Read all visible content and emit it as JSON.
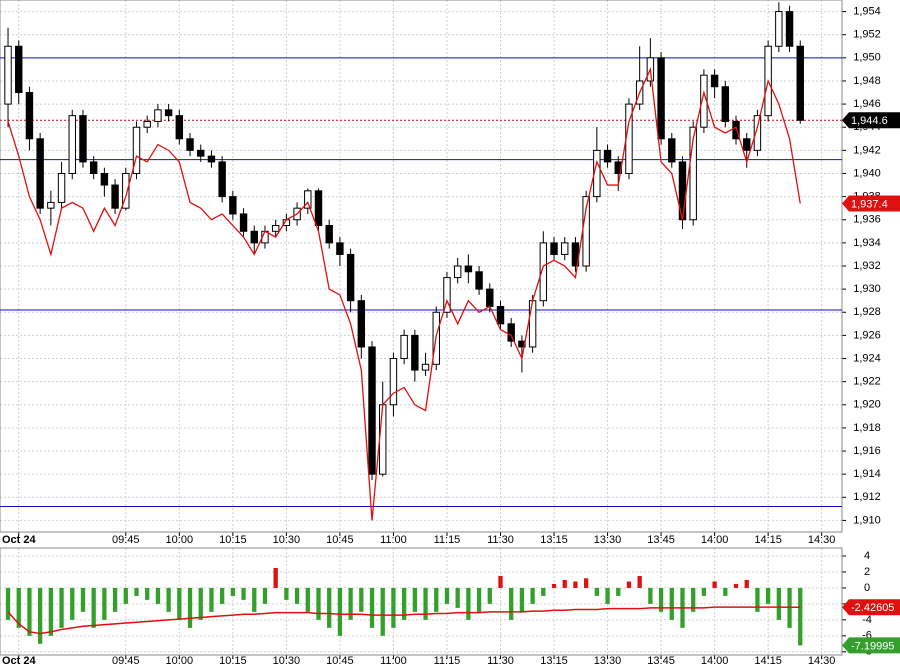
{
  "chart_data": [
    {
      "type": "candlestick",
      "xlim": [
        -0.75,
        77.9
      ],
      "xticks": [
        {
          "value": 1,
          "label": "Oct 24"
        },
        {
          "value": 11,
          "label": "09:45"
        },
        {
          "value": 16,
          "label": "10:00"
        },
        {
          "value": 21,
          "label": "10:15"
        },
        {
          "value": 26,
          "label": "10:30"
        },
        {
          "value": 31,
          "label": "10:45"
        },
        {
          "value": 36,
          "label": "11:00"
        },
        {
          "value": 41,
          "label": "11:15"
        },
        {
          "value": 46,
          "label": "11:30"
        },
        {
          "value": 51,
          "label": "13:15"
        },
        {
          "value": 56,
          "label": "13:30"
        },
        {
          "value": 61,
          "label": "13:45"
        },
        {
          "value": 66,
          "label": "14:00"
        },
        {
          "value": 71,
          "label": "14:15"
        },
        {
          "value": 76,
          "label": "14:30"
        }
      ],
      "ylim": [
        1909,
        1955
      ],
      "yticks": [
        {
          "value": 1910,
          "label": "1,910"
        },
        {
          "value": 1912,
          "label": "1,912"
        },
        {
          "value": 1914,
          "label": "1,914"
        },
        {
          "value": 1916,
          "label": "1,916"
        },
        {
          "value": 1918,
          "label": "1,918"
        },
        {
          "value": 1920,
          "label": "1,920"
        },
        {
          "value": 1922,
          "label": "1,922"
        },
        {
          "value": 1924,
          "label": "1,924"
        },
        {
          "value": 1926,
          "label": "1,926"
        },
        {
          "value": 1928,
          "label": "1,928"
        },
        {
          "value": 1930,
          "label": "1,930"
        },
        {
          "value": 1932,
          "label": "1,932"
        },
        {
          "value": 1934,
          "label": "1,934"
        },
        {
          "value": 1936,
          "label": "1,936"
        },
        {
          "value": 1938,
          "label": "1,938"
        },
        {
          "value": 1940,
          "label": "1,940"
        },
        {
          "value": 1942,
          "label": "1,942"
        },
        {
          "value": 1944,
          "label": "1,944"
        },
        {
          "value": 1946,
          "label": "1,946"
        },
        {
          "value": 1948,
          "label": "1,948"
        },
        {
          "value": 1950,
          "label": "1,950"
        },
        {
          "value": 1952,
          "label": "1,952"
        },
        {
          "value": 1954,
          "label": "1,954"
        }
      ],
      "grid": true,
      "open": [
        1946,
        1951,
        1947,
        1943,
        1937,
        1937.5,
        1940,
        1945,
        1941,
        1940,
        1939,
        1937,
        1940,
        1944,
        1944.5,
        1945.5,
        1945,
        1943,
        1942,
        1941.5,
        1941,
        1938,
        1936.5,
        1935,
        1934,
        1935,
        1935.5,
        1936,
        1937,
        1938.5,
        1935.5,
        1934,
        1933,
        1929,
        1925,
        1914,
        1920,
        1924,
        1926,
        1923,
        1923.5,
        1928,
        1931,
        1932,
        1931.5,
        1930,
        1928.5,
        1927,
        1925.5,
        1925,
        1929,
        1934,
        1933,
        1934,
        1932,
        1938,
        1942,
        1941,
        1940,
        1946,
        1948,
        1950,
        1943,
        1941,
        1936,
        1944,
        1948.5,
        1947.5,
        1944.5,
        1943,
        1942,
        1945,
        1951,
        1954,
        1951
      ],
      "high": [
        1952.6,
        1951.5,
        1947.5,
        1943.5,
        1938.5,
        1941,
        1945.5,
        1945.5,
        1941.5,
        1940.5,
        1939.5,
        1940.5,
        1944.5,
        1945,
        1946,
        1946,
        1945.5,
        1943.5,
        1942.5,
        1942,
        1941.5,
        1938.5,
        1937,
        1935.5,
        1935.5,
        1936,
        1936.5,
        1937.5,
        1938.7,
        1938.7,
        1936,
        1934.5,
        1933.5,
        1929.5,
        1925.5,
        1922,
        1924.5,
        1926.5,
        1926.5,
        1924.5,
        1928.5,
        1931.5,
        1932.7,
        1933,
        1932,
        1930.5,
        1929,
        1927.5,
        1926,
        1929.5,
        1935,
        1934.5,
        1934.5,
        1934.5,
        1938.5,
        1944,
        1942.5,
        1941.5,
        1946.5,
        1951,
        1951.7,
        1950.5,
        1943.5,
        1941.5,
        1944.5,
        1949,
        1949,
        1948,
        1945,
        1943.5,
        1945.5,
        1951.5,
        1954.8,
        1954.5,
        1951.5
      ],
      "low": [
        1944,
        1946,
        1942,
        1936.5,
        1935.5,
        1937,
        1939.5,
        1940.5,
        1939.5,
        1938,
        1936.5,
        1936.8,
        1939.5,
        1943.5,
        1944,
        1944.5,
        1942.5,
        1941.5,
        1941,
        1940.5,
        1937.5,
        1936,
        1934.5,
        1933,
        1933.5,
        1934.5,
        1935,
        1935.5,
        1936.5,
        1935,
        1933.5,
        1932,
        1928,
        1924,
        1913.5,
        1913.8,
        1919,
        1923.5,
        1922,
        1922.5,
        1923,
        1927.5,
        1930.5,
        1930.5,
        1929.5,
        1928,
        1926.5,
        1925,
        1922.8,
        1924.5,
        1928.5,
        1932.5,
        1932.5,
        1931.5,
        1931.5,
        1937.5,
        1940.5,
        1938.5,
        1939.5,
        1945.5,
        1947.5,
        1942.5,
        1940.5,
        1935.2,
        1935.5,
        1943.5,
        1946.5,
        1944,
        1942.5,
        1940.5,
        1941.5,
        1944.5,
        1950.5,
        1950.5,
        1944.3
      ],
      "close": [
        1951,
        1947,
        1943,
        1937,
        1937.5,
        1940,
        1945,
        1941,
        1940,
        1939,
        1937,
        1940,
        1944,
        1944.5,
        1945.5,
        1945,
        1943,
        1942,
        1941.5,
        1941,
        1938,
        1936.5,
        1935,
        1934,
        1935,
        1935.5,
        1936,
        1937,
        1938.5,
        1935.5,
        1934,
        1933,
        1929,
        1925,
        1914,
        1920,
        1924,
        1926,
        1923,
        1923.5,
        1928,
        1931,
        1932,
        1931.5,
        1930,
        1928.5,
        1927,
        1925.5,
        1925,
        1929,
        1934,
        1933,
        1934,
        1932,
        1938,
        1942,
        1941,
        1940,
        1946,
        1948,
        1950,
        1943,
        1941,
        1936,
        1944,
        1948.5,
        1947.5,
        1944.5,
        1943,
        1942,
        1945,
        1951,
        1954,
        1951,
        1944.6
      ],
      "up_color": "#ffffff",
      "down_color": "#000000",
      "overlay": {
        "color": "#e01010",
        "values": [
          1944.5,
          1941.5,
          1938,
          1936,
          1933,
          1937,
          1937.5,
          1937,
          1935,
          1937,
          1935.5,
          1938,
          1941.5,
          1941,
          1942.5,
          1942,
          1941,
          1937.5,
          1937,
          1936,
          1936.5,
          1935.5,
          1934.5,
          1933,
          1935,
          1934.5,
          1936,
          1936.5,
          1937.5,
          1935,
          1930,
          1929.5,
          1927,
          1923,
          1910,
          1920,
          1921,
          1921.5,
          1920,
          1919.5,
          1926,
          1929,
          1927,
          1929,
          1928,
          1928.5,
          1926.5,
          1926,
          1924,
          1929,
          1932,
          1932.5,
          1932,
          1931,
          1937,
          1941,
          1939,
          1939,
          1944.5,
          1947,
          1949,
          1941,
          1940,
          1936,
          1943,
          1947,
          1944,
          1943.5,
          1944,
          1941,
          1944,
          1948,
          1946,
          1943,
          1937.4
        ]
      },
      "hlines": [
        {
          "value": 1950,
          "color": "#1010c0"
        },
        {
          "value": 1941.2,
          "color": "#1010c0"
        },
        {
          "value": 1928.2,
          "color": "#1010c0"
        },
        {
          "value": 1911.2,
          "color": "#1010c0"
        }
      ],
      "annotations": [
        {
          "value": 1944.6,
          "label": "1,944.6",
          "color": "#000000",
          "dashed": true
        },
        {
          "value": 1937.4,
          "label": "1,937.4",
          "color": "#e01010",
          "dashed": false
        }
      ]
    },
    {
      "type": "bar",
      "xlim": [
        -0.75,
        77.9
      ],
      "xticks": [
        {
          "value": 1,
          "label": "Oct 24"
        },
        {
          "value": 11,
          "label": "09:45"
        },
        {
          "value": 16,
          "label": "10:00"
        },
        {
          "value": 21,
          "label": "10:15"
        },
        {
          "value": 26,
          "label": "10:30"
        },
        {
          "value": 31,
          "label": "10:45"
        },
        {
          "value": 36,
          "label": "11:00"
        },
        {
          "value": 41,
          "label": "11:15"
        },
        {
          "value": 46,
          "label": "11:30"
        },
        {
          "value": 51,
          "label": "13:15"
        },
        {
          "value": 56,
          "label": "13:30"
        },
        {
          "value": 61,
          "label": "13:45"
        },
        {
          "value": 66,
          "label": "14:00"
        },
        {
          "value": 71,
          "label": "14:15"
        },
        {
          "value": 76,
          "label": "14:30"
        }
      ],
      "ylim": [
        -8.4,
        5
      ],
      "yticks": [
        4,
        2,
        0,
        -2,
        -4,
        -6,
        -8
      ],
      "grid": true,
      "values": [
        -4,
        -5,
        -6,
        -7,
        -6,
        -5,
        -4,
        -3,
        -5,
        -4,
        -3,
        -2,
        -1,
        -1.5,
        -2,
        -3,
        -4,
        -5,
        -4,
        -3,
        -2,
        -1,
        -1.5,
        -3,
        -2,
        2.5,
        -1.5,
        -2,
        -3,
        -4,
        -5,
        -6,
        -4,
        -3,
        -5,
        -6,
        -5,
        -4,
        -3,
        -4,
        -3,
        -2,
        -2.5,
        -4,
        -3,
        -2,
        1.5,
        -4,
        -3,
        -2,
        -1,
        0.5,
        1,
        0.8,
        1.2,
        -1,
        -2,
        -1,
        0.8,
        1.5,
        -2,
        -3,
        -4,
        -5,
        -3,
        -1,
        0.8,
        -1,
        0.5,
        1,
        -3,
        -2,
        -4,
        -5,
        -7.19995
      ],
      "up_color": "#e01010",
      "down_color": "#33a02c",
      "signal": {
        "color": "#e01010",
        "values": [
          -3,
          -4.5,
          -5.5,
          -5.7,
          -5.5,
          -5.2,
          -5,
          -4.8,
          -4.7,
          -4.6,
          -4.5,
          -4.4,
          -4.3,
          -4.2,
          -4.1,
          -4,
          -3.9,
          -3.8,
          -3.7,
          -3.6,
          -3.5,
          -3.4,
          -3.3,
          -3.3,
          -3.2,
          -3.1,
          -3.1,
          -3.1,
          -3.1,
          -3.2,
          -3.2,
          -3.3,
          -3.3,
          -3.3,
          -3.4,
          -3.4,
          -3.4,
          -3.4,
          -3.3,
          -3.3,
          -3.2,
          -3.2,
          -3.1,
          -3.1,
          -3.1,
          -3,
          -3,
          -3,
          -3,
          -2.9,
          -2.9,
          -2.8,
          -2.8,
          -2.7,
          -2.7,
          -2.7,
          -2.6,
          -2.6,
          -2.6,
          -2.6,
          -2.5,
          -2.5,
          -2.5,
          -2.5,
          -2.5,
          -2.5,
          -2.4,
          -2.4,
          -2.4,
          -2.4,
          -2.4,
          -2.4,
          -2.4,
          -2.42,
          -2.42605
        ]
      },
      "annotations": [
        {
          "value": -2.42605,
          "label": "-2.42605",
          "color": "#e01010"
        },
        {
          "value": -7.19995,
          "label": "-7.19995",
          "color": "#33a02c"
        }
      ]
    }
  ]
}
